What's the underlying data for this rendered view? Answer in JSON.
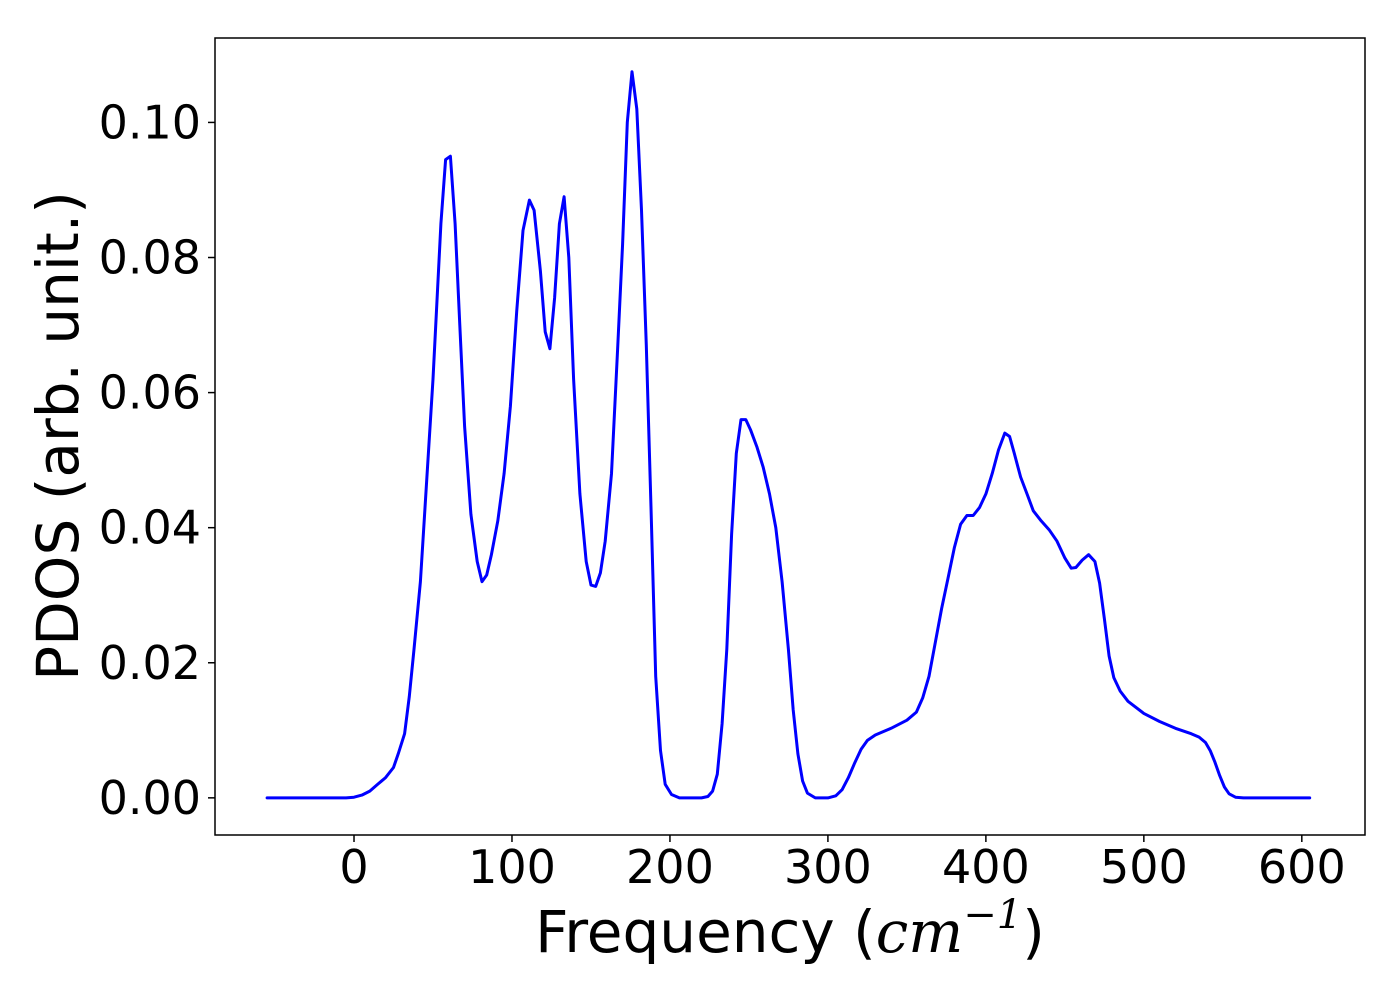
{
  "chart_data": {
    "type": "line",
    "title": "",
    "xlabel": "Frequency (",
    "xlabel_math": "cm",
    "xlabel_sup": "−1",
    "xlabel_tail": ")",
    "ylabel": "PDOS (arb. unit.)",
    "xlim": [
      -88,
      640
    ],
    "ylim": [
      -0.0055,
      0.1125
    ],
    "xticks": [
      {
        "value": 0,
        "label": "0"
      },
      {
        "value": 100,
        "label": "100"
      },
      {
        "value": 200,
        "label": "200"
      },
      {
        "value": 300,
        "label": "300"
      },
      {
        "value": 400,
        "label": "400"
      },
      {
        "value": 500,
        "label": "500"
      },
      {
        "value": 600,
        "label": "600"
      }
    ],
    "yticks": [
      {
        "value": 0.0,
        "label": "0.00"
      },
      {
        "value": 0.02,
        "label": "0.02"
      },
      {
        "value": 0.04,
        "label": "0.04"
      },
      {
        "value": 0.06,
        "label": "0.06"
      },
      {
        "value": 0.08,
        "label": "0.08"
      },
      {
        "value": 0.1,
        "label": "0.10"
      }
    ],
    "grid": false,
    "legend": "none",
    "series": [
      {
        "color": "#0000ff",
        "points": [
          [
            -55,
            0.0
          ],
          [
            -20,
            0.0
          ],
          [
            -5,
            0.0
          ],
          [
            0,
            0.0001
          ],
          [
            5,
            0.0004
          ],
          [
            10,
            0.001
          ],
          [
            15,
            0.002
          ],
          [
            20,
            0.003
          ],
          [
            25,
            0.0045
          ],
          [
            28,
            0.0065
          ],
          [
            32,
            0.0095
          ],
          [
            35,
            0.015
          ],
          [
            38,
            0.022
          ],
          [
            42,
            0.032
          ],
          [
            46,
            0.047
          ],
          [
            50,
            0.062
          ],
          [
            55,
            0.085
          ],
          [
            58,
            0.0945
          ],
          [
            61,
            0.095
          ],
          [
            64,
            0.085
          ],
          [
            67,
            0.07
          ],
          [
            70,
            0.055
          ],
          [
            74,
            0.042
          ],
          [
            78,
            0.035
          ],
          [
            81,
            0.032
          ],
          [
            84,
            0.033
          ],
          [
            87,
            0.036
          ],
          [
            91,
            0.041
          ],
          [
            95,
            0.048
          ],
          [
            99,
            0.058
          ],
          [
            103,
            0.072
          ],
          [
            107,
            0.084
          ],
          [
            111,
            0.0885
          ],
          [
            114,
            0.087
          ],
          [
            118,
            0.078
          ],
          [
            121,
            0.069
          ],
          [
            124,
            0.0665
          ],
          [
            127,
            0.074
          ],
          [
            130,
            0.085
          ],
          [
            133,
            0.089
          ],
          [
            136,
            0.08
          ],
          [
            139,
            0.062
          ],
          [
            143,
            0.045
          ],
          [
            147,
            0.035
          ],
          [
            150,
            0.0315
          ],
          [
            153,
            0.0313
          ],
          [
            156,
            0.0333
          ],
          [
            159,
            0.038
          ],
          [
            163,
            0.048
          ],
          [
            167,
            0.067
          ],
          [
            170,
            0.082
          ],
          [
            173,
            0.1
          ],
          [
            176,
            0.1075
          ],
          [
            179,
            0.102
          ],
          [
            182,
            0.087
          ],
          [
            185,
            0.067
          ],
          [
            188,
            0.043
          ],
          [
            191,
            0.018
          ],
          [
            194,
            0.007
          ],
          [
            197,
            0.002
          ],
          [
            201,
            0.0005
          ],
          [
            206,
            0.0
          ],
          [
            220,
            0.0
          ],
          [
            224,
            0.0002
          ],
          [
            227,
            0.001
          ],
          [
            230,
            0.0035
          ],
          [
            233,
            0.011
          ],
          [
            236,
            0.022
          ],
          [
            239,
            0.039
          ],
          [
            242,
            0.051
          ],
          [
            245,
            0.056
          ],
          [
            248,
            0.056
          ],
          [
            251,
            0.0545
          ],
          [
            255,
            0.052
          ],
          [
            259,
            0.049
          ],
          [
            263,
            0.045
          ],
          [
            267,
            0.04
          ],
          [
            271,
            0.032
          ],
          [
            275,
            0.022
          ],
          [
            278,
            0.013
          ],
          [
            281,
            0.0065
          ],
          [
            284,
            0.0025
          ],
          [
            287,
            0.0007
          ],
          [
            292,
            0.0
          ],
          [
            300,
            0.0
          ],
          [
            305,
            0.0003
          ],
          [
            309,
            0.0012
          ],
          [
            313,
            0.003
          ],
          [
            317,
            0.0052
          ],
          [
            321,
            0.0072
          ],
          [
            325,
            0.0085
          ],
          [
            330,
            0.0093
          ],
          [
            340,
            0.0103
          ],
          [
            350,
            0.0115
          ],
          [
            356,
            0.0127
          ],
          [
            360,
            0.0148
          ],
          [
            364,
            0.018
          ],
          [
            368,
            0.023
          ],
          [
            372,
            0.028
          ],
          [
            376,
            0.0325
          ],
          [
            380,
            0.037
          ],
          [
            384,
            0.0405
          ],
          [
            388,
            0.0418
          ],
          [
            392,
            0.0418
          ],
          [
            396,
            0.043
          ],
          [
            400,
            0.045
          ],
          [
            404,
            0.048
          ],
          [
            408,
            0.0515
          ],
          [
            412,
            0.054
          ],
          [
            415,
            0.0535
          ],
          [
            418,
            0.051
          ],
          [
            422,
            0.0475
          ],
          [
            426,
            0.045
          ],
          [
            430,
            0.0425
          ],
          [
            435,
            0.041
          ],
          [
            440,
            0.0397
          ],
          [
            445,
            0.038
          ],
          [
            450,
            0.0355
          ],
          [
            454,
            0.034
          ],
          [
            457,
            0.0341
          ],
          [
            461,
            0.0352
          ],
          [
            465,
            0.036
          ],
          [
            469,
            0.035
          ],
          [
            472,
            0.0318
          ],
          [
            475,
            0.0265
          ],
          [
            478,
            0.021
          ],
          [
            481,
            0.0178
          ],
          [
            485,
            0.0158
          ],
          [
            490,
            0.0143
          ],
          [
            500,
            0.0125
          ],
          [
            510,
            0.0113
          ],
          [
            520,
            0.0103
          ],
          [
            530,
            0.0095
          ],
          [
            535,
            0.009
          ],
          [
            539,
            0.0082
          ],
          [
            542,
            0.007
          ],
          [
            545,
            0.0053
          ],
          [
            548,
            0.0033
          ],
          [
            551,
            0.0016
          ],
          [
            554,
            0.0006
          ],
          [
            558,
            0.0001
          ],
          [
            563,
            0.0
          ],
          [
            575,
            0.0
          ],
          [
            605,
            0.0
          ]
        ]
      }
    ]
  }
}
